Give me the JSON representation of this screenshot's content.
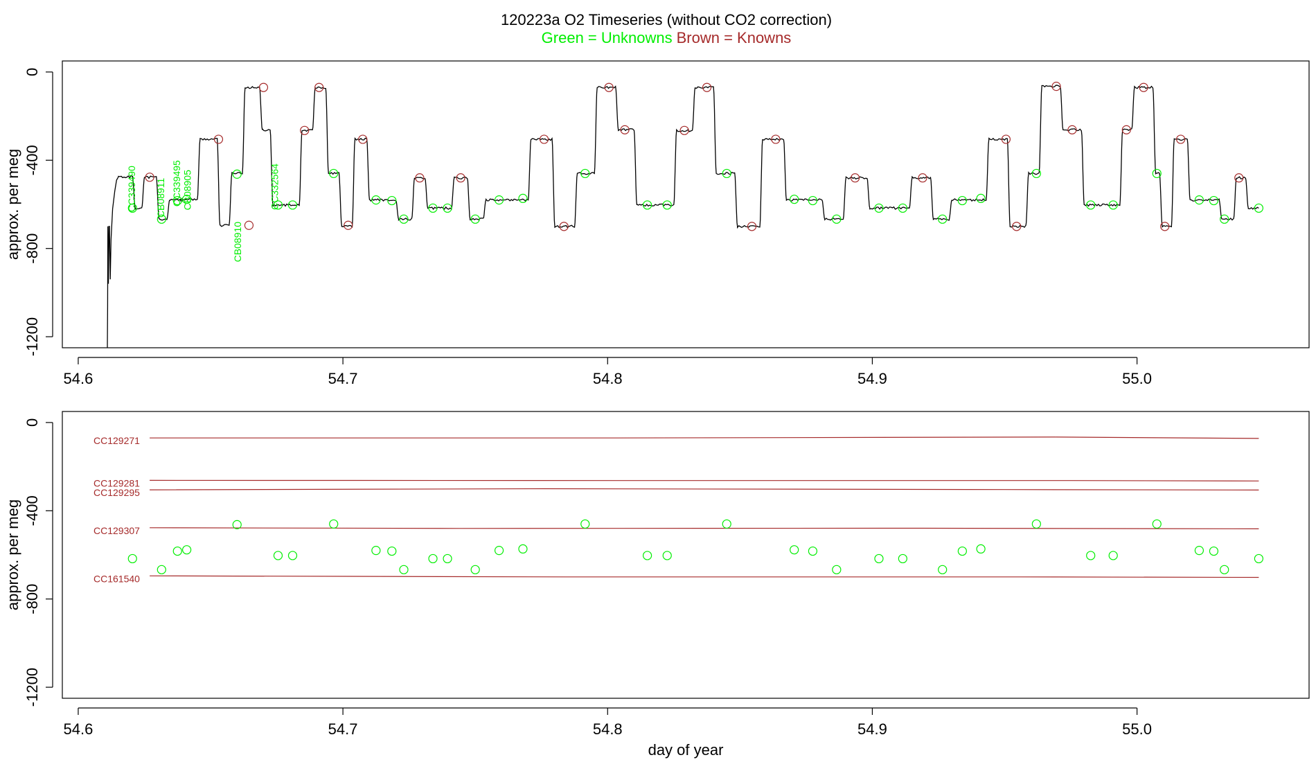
{
  "title": {
    "main": "120223a   O2 Timeseries (without CO2 correction)",
    "green_label": "Green = Unknowns",
    "brown_label": "Brown = Knowns",
    "green_color": "#00ee00",
    "brown_color": "#a52a2a"
  },
  "chart_data": [
    {
      "type": "line",
      "panel": "top",
      "ylabel": "approx. per meg",
      "xlabel": "",
      "xlim": [
        54.594,
        55.065
      ],
      "ylim": [
        -1250,
        50
      ],
      "xticks": [
        54.6,
        54.7,
        54.8,
        54.9,
        55.0
      ],
      "xtick_labels": [
        "54.6",
        "54.7",
        "54.8",
        "54.9",
        "55.0"
      ],
      "yticks": [
        0,
        -400,
        -800,
        -1200
      ],
      "ytick_labels": [
        "0",
        "-400",
        "-800",
        "-1200"
      ],
      "trace_color": "#000000",
      "startup": {
        "x": [
          54.611,
          54.6111,
          54.6112,
          54.6114,
          54.6116,
          54.6118,
          54.6121,
          54.6124,
          54.613,
          54.6138,
          54.6145,
          54.6152
        ],
        "y": [
          -1250,
          -1060,
          -700,
          -960,
          -700,
          -700,
          -940,
          -760,
          -620,
          -540,
          -490,
          -475
        ]
      },
      "levels": [
        {
          "x0": 54.6152,
          "x1": 54.6205,
          "y": -475
        },
        {
          "x0": 54.6205,
          "x1": 54.624,
          "y": -617
        },
        {
          "x0": 54.624,
          "x1": 54.6295,
          "y": -477
        },
        {
          "x0": 54.6295,
          "x1": 54.6335,
          "y": -667
        },
        {
          "x0": 54.6335,
          "x1": 54.6375,
          "y": -580
        },
        {
          "x0": 54.6375,
          "x1": 54.6395,
          "y": -580
        },
        {
          "x0": 54.6395,
          "x1": 54.645,
          "y": -577
        },
        {
          "x0": 54.645,
          "x1": 54.6525,
          "y": -305
        },
        {
          "x0": 54.6525,
          "x1": 54.657,
          "y": -695
        },
        {
          "x0": 54.657,
          "x1": 54.662,
          "y": -460
        },
        {
          "x0": 54.662,
          "x1": 54.6685,
          "y": -70
        },
        {
          "x0": 54.6685,
          "x1": 54.6725,
          "y": -262
        },
        {
          "x0": 54.6725,
          "x1": 54.6835,
          "y": -603
        },
        {
          "x0": 54.6835,
          "x1": 54.6885,
          "y": -265
        },
        {
          "x0": 54.6885,
          "x1": 54.6935,
          "y": -70
        },
        {
          "x0": 54.6935,
          "x1": 54.6985,
          "y": -460
        },
        {
          "x0": 54.6985,
          "x1": 54.7035,
          "y": -698
        },
        {
          "x0": 54.7035,
          "x1": 54.709,
          "y": -305
        },
        {
          "x0": 54.709,
          "x1": 54.72,
          "y": -580
        },
        {
          "x0": 54.72,
          "x1": 54.726,
          "y": -667
        },
        {
          "x0": 54.726,
          "x1": 54.731,
          "y": -480
        },
        {
          "x0": 54.731,
          "x1": 54.741,
          "y": -617
        },
        {
          "x0": 54.741,
          "x1": 54.747,
          "y": -480
        },
        {
          "x0": 54.747,
          "x1": 54.753,
          "y": -667
        },
        {
          "x0": 54.753,
          "x1": 54.77,
          "y": -580
        },
        {
          "x0": 54.77,
          "x1": 54.779,
          "y": -305
        },
        {
          "x0": 54.779,
          "x1": 54.7875,
          "y": -700
        },
        {
          "x0": 54.7875,
          "x1": 54.795,
          "y": -460
        },
        {
          "x0": 54.795,
          "x1": 54.803,
          "y": -70
        },
        {
          "x0": 54.803,
          "x1": 54.81,
          "y": -262
        },
        {
          "x0": 54.81,
          "x1": 54.825,
          "y": -603
        },
        {
          "x0": 54.825,
          "x1": 54.832,
          "y": -265
        },
        {
          "x0": 54.832,
          "x1": 54.84,
          "y": -70
        },
        {
          "x0": 54.84,
          "x1": 54.848,
          "y": -460
        },
        {
          "x0": 54.848,
          "x1": 54.8575,
          "y": -700
        },
        {
          "x0": 54.8575,
          "x1": 54.8665,
          "y": -305
        },
        {
          "x0": 54.8665,
          "x1": 54.881,
          "y": -580
        },
        {
          "x0": 54.881,
          "x1": 54.889,
          "y": -667
        },
        {
          "x0": 54.889,
          "x1": 54.898,
          "y": -480
        },
        {
          "x0": 54.898,
          "x1": 54.914,
          "y": -617
        },
        {
          "x0": 54.914,
          "x1": 54.922,
          "y": -480
        },
        {
          "x0": 54.922,
          "x1": 54.929,
          "y": -667
        },
        {
          "x0": 54.929,
          "x1": 54.943,
          "y": -580
        },
        {
          "x0": 54.943,
          "x1": 54.951,
          "y": -305
        },
        {
          "x0": 54.951,
          "x1": 54.958,
          "y": -700
        },
        {
          "x0": 54.958,
          "x1": 54.963,
          "y": -460
        },
        {
          "x0": 54.963,
          "x1": 54.971,
          "y": -65
        },
        {
          "x0": 54.971,
          "x1": 54.979,
          "y": -262
        },
        {
          "x0": 54.979,
          "x1": 54.9935,
          "y": -603
        },
        {
          "x0": 54.9935,
          "x1": 54.998,
          "y": -262
        },
        {
          "x0": 54.998,
          "x1": 55.006,
          "y": -70
        },
        {
          "x0": 55.006,
          "x1": 55.0085,
          "y": -460
        },
        {
          "x0": 55.0085,
          "x1": 55.013,
          "y": -700
        },
        {
          "x0": 55.013,
          "x1": 55.019,
          "y": -305
        },
        {
          "x0": 55.019,
          "x1": 55.031,
          "y": -580
        },
        {
          "x0": 55.031,
          "x1": 55.0365,
          "y": -667
        },
        {
          "x0": 55.0365,
          "x1": 55.041,
          "y": -480
        },
        {
          "x0": 55.041,
          "x1": 55.046,
          "y": -617
        }
      ],
      "unknown_points": {
        "x": [
          54.6205,
          54.6315,
          54.6375,
          54.641,
          54.66,
          54.6755,
          54.681,
          54.6965,
          54.7125,
          54.7185,
          54.723,
          54.734,
          54.7395,
          54.75,
          54.759,
          54.768,
          54.7915,
          54.815,
          54.8225,
          54.845,
          54.8705,
          54.8775,
          54.8865,
          54.9025,
          54.9115,
          54.9265,
          54.934,
          54.941,
          54.962,
          54.9825,
          54.991,
          55.0075,
          55.0235,
          55.029,
          55.033,
          55.046
        ],
        "y": [
          -617,
          -667,
          -583,
          -577,
          -463,
          -603,
          -603,
          -460,
          -580,
          -583,
          -667,
          -617,
          -617,
          -667,
          -580,
          -573,
          -460,
          -603,
          -603,
          -460,
          -577,
          -583,
          -667,
          -617,
          -617,
          -667,
          -583,
          -573,
          -460,
          -603,
          -603,
          -460,
          -580,
          -583,
          -667,
          -617
        ]
      },
      "known_points": {
        "x": [
          54.627,
          54.653,
          54.6645,
          54.67,
          54.6855,
          54.691,
          54.702,
          54.7075,
          54.729,
          54.7445,
          54.776,
          54.7835,
          54.8005,
          54.8065,
          54.829,
          54.8375,
          54.8545,
          54.8635,
          54.8935,
          54.919,
          54.9505,
          54.9545,
          54.9695,
          54.9755,
          54.996,
          55.0025,
          55.0105,
          55.0165,
          55.0385
        ],
        "y": [
          -477,
          -305,
          -695,
          -70,
          -265,
          -70,
          -695,
          -305,
          -480,
          -480,
          -305,
          -700,
          -70,
          -262,
          -265,
          -70,
          -700,
          -305,
          -480,
          -480,
          -305,
          -700,
          -65,
          -262,
          -262,
          -70,
          -700,
          -305,
          -480
        ]
      },
      "annotations": [
        {
          "text": "CC339490",
          "x": 54.6215,
          "y": -530
        },
        {
          "text": "CB08911",
          "x": 54.6325,
          "y": -570
        },
        {
          "text": "CC339495",
          "x": 54.6385,
          "y": -505
        },
        {
          "text": "CB08905",
          "x": 54.6425,
          "y": -535
        },
        {
          "text": "CB08910",
          "x": 54.6615,
          "y": -770
        },
        {
          "text": "CC332564",
          "x": 54.6755,
          "y": -520
        }
      ]
    },
    {
      "type": "line",
      "panel": "bottom",
      "ylabel": "approx. per meg",
      "xlabel": "day of year",
      "xlim": [
        54.594,
        55.065
      ],
      "ylim": [
        -1250,
        50
      ],
      "xticks": [
        54.6,
        54.7,
        54.8,
        54.9,
        55.0
      ],
      "xtick_labels": [
        "54.6",
        "54.7",
        "54.8",
        "54.9",
        "55.0"
      ],
      "yticks": [
        0,
        -400,
        -800,
        -1200
      ],
      "ytick_labels": [
        "0",
        "-400",
        "-800",
        "-1200"
      ],
      "series": [
        {
          "name": "CC129271",
          "x": [
            54.627,
            54.8,
            54.969,
            55.046
          ],
          "y": [
            -70,
            -70,
            -66,
            -72
          ]
        },
        {
          "name": "CC129281",
          "x": [
            54.627,
            54.806,
            54.975,
            55.046
          ],
          "y": [
            -262,
            -263,
            -263,
            -265
          ]
        },
        {
          "name": "CC129295",
          "x": [
            54.627,
            54.776,
            54.95,
            55.046
          ],
          "y": [
            -305,
            -300,
            -304,
            -306
          ]
        },
        {
          "name": "CC129307",
          "x": [
            54.627,
            54.744,
            54.919,
            55.046
          ],
          "y": [
            -477,
            -480,
            -479,
            -482
          ]
        },
        {
          "name": "CC161540",
          "x": [
            54.627,
            54.784,
            54.956,
            55.046
          ],
          "y": [
            -695,
            -700,
            -700,
            -702
          ]
        }
      ],
      "unknown_points": {
        "x": [
          54.6205,
          54.6315,
          54.6375,
          54.641,
          54.66,
          54.6755,
          54.681,
          54.6965,
          54.7125,
          54.7185,
          54.723,
          54.734,
          54.7395,
          54.75,
          54.759,
          54.768,
          54.7915,
          54.815,
          54.8225,
          54.845,
          54.8705,
          54.8775,
          54.8865,
          54.9025,
          54.9115,
          54.9265,
          54.934,
          54.941,
          54.962,
          54.9825,
          54.991,
          55.0075,
          55.0235,
          55.029,
          55.033,
          55.046
        ],
        "y": [
          -617,
          -667,
          -583,
          -577,
          -463,
          -603,
          -603,
          -460,
          -580,
          -583,
          -667,
          -617,
          -617,
          -667,
          -580,
          -573,
          -460,
          -603,
          -603,
          -460,
          -577,
          -583,
          -667,
          -617,
          -617,
          -667,
          -583,
          -573,
          -460,
          -603,
          -603,
          -460,
          -580,
          -583,
          -667,
          -617
        ]
      }
    }
  ]
}
